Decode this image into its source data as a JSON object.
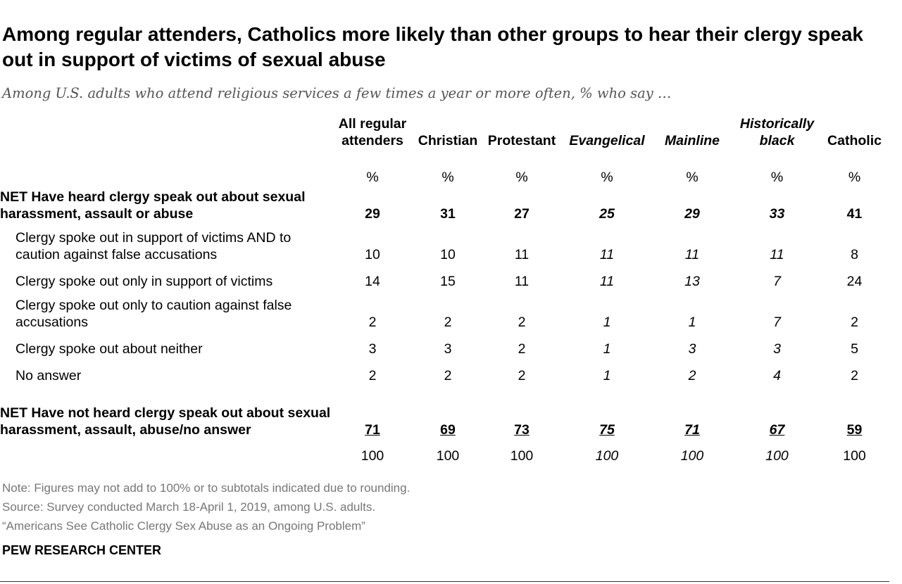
{
  "title": "Among regular attenders, Catholics more likely than other groups to hear their clergy speak out in support of victims of sexual abuse",
  "subtitle": "Among U.S. adults who attend religious services a few times a year or more often, % who say …",
  "columns": [
    {
      "label": "All regular attenders",
      "italic": false
    },
    {
      "label": "Christian",
      "italic": false
    },
    {
      "label": "Protestant",
      "italic": false
    },
    {
      "label": "Evangelical",
      "italic": true
    },
    {
      "label": "Mainline",
      "italic": true
    },
    {
      "label": "Historically black",
      "italic": true
    },
    {
      "label": "Catholic",
      "italic": false
    }
  ],
  "pct_symbol": "%",
  "chart_data": {
    "type": "table",
    "title": "Among regular attenders, Catholics more likely than other groups to hear their clergy speak out in support of victims of sexual abuse",
    "columns": [
      "All regular attenders",
      "Christian",
      "Protestant",
      "Evangelical",
      "Mainline",
      "Historically black",
      "Catholic"
    ],
    "rows": [
      {
        "label": "NET Have heard clergy speak out about sexual harassment, assault or abuse",
        "values": [
          29,
          31,
          27,
          25,
          29,
          33,
          41
        ]
      },
      {
        "label": "Clergy spoke out in support of victims AND to caution against false accusations",
        "values": [
          10,
          10,
          11,
          11,
          11,
          11,
          8
        ]
      },
      {
        "label": "Clergy spoke out only in support of victims",
        "values": [
          14,
          15,
          11,
          11,
          13,
          7,
          24
        ]
      },
      {
        "label": "Clergy spoke out only to caution against false accusations",
        "values": [
          2,
          2,
          2,
          1,
          1,
          7,
          2
        ]
      },
      {
        "label": "Clergy spoke out about neither",
        "values": [
          3,
          3,
          2,
          1,
          3,
          3,
          5
        ]
      },
      {
        "label": "No answer",
        "values": [
          2,
          2,
          2,
          1,
          2,
          4,
          2
        ]
      },
      {
        "label": "NET Have not heard clergy speak out about sexual harassment, assault, abuse/no answer",
        "values": [
          71,
          69,
          73,
          75,
          71,
          67,
          59
        ]
      },
      {
        "label": "",
        "values": [
          100,
          100,
          100,
          100,
          100,
          100,
          100
        ]
      }
    ],
    "unit": "%"
  },
  "notes": {
    "note": "Note: Figures may not add to 100% or to subtotals indicated due to rounding.",
    "source": "Source: Survey conducted March 18-April 1, 2019, among U.S. adults.",
    "report": "“Americans See Catholic Clergy Sex Abuse as an Ongoing Problem”"
  },
  "brand": "PEW RESEARCH CENTER"
}
